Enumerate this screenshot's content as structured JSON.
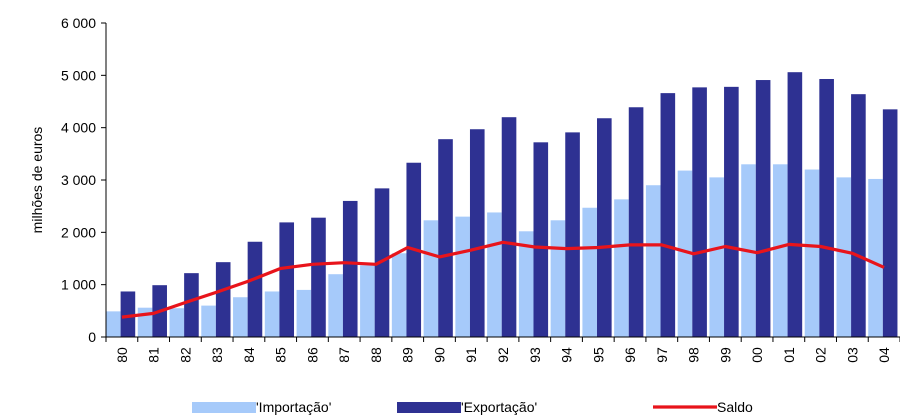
{
  "chart_data": {
    "type": "bar",
    "categories": [
      "80",
      "81",
      "82",
      "83",
      "84",
      "85",
      "86",
      "87",
      "88",
      "89",
      "90",
      "91",
      "92",
      "93",
      "94",
      "95",
      "96",
      "97",
      "98",
      "99",
      "00",
      "01",
      "02",
      "03",
      "04"
    ],
    "series": [
      {
        "name": "'Importação'",
        "type": "bar",
        "color": "#a6cafa",
        "values": [
          490,
          560,
          550,
          600,
          760,
          870,
          900,
          1200,
          1370,
          1600,
          2230,
          2300,
          2380,
          2020,
          2230,
          2470,
          2630,
          2900,
          3180,
          3050,
          3300,
          3300,
          3200,
          3050,
          3020
        ]
      },
      {
        "name": "'Exportação'",
        "type": "bar",
        "color": "#2e3192",
        "values": [
          870,
          990,
          1220,
          1430,
          1820,
          2190,
          2280,
          2600,
          2840,
          3330,
          3780,
          3970,
          4200,
          3720,
          3910,
          4180,
          4390,
          4660,
          4770,
          4780,
          4910,
          5060,
          4930,
          4640,
          4350
        ]
      },
      {
        "name": "Saldo",
        "type": "line",
        "color": "#e8141b",
        "values": [
          380,
          450,
          660,
          860,
          1070,
          1310,
          1390,
          1420,
          1390,
          1710,
          1530,
          1660,
          1810,
          1720,
          1690,
          1710,
          1760,
          1760,
          1590,
          1730,
          1610,
          1770,
          1730,
          1600,
          1330
        ]
      }
    ],
    "ylabel": "milhões de euros",
    "xlabel": "",
    "ylim": [
      0,
      6000
    ],
    "yticks": [
      0,
      1000,
      2000,
      3000,
      4000,
      5000,
      6000
    ],
    "ytick_labels": [
      "0",
      "1 000",
      "2 000",
      "3 000",
      "4 000",
      "5 000",
      "6 000"
    ],
    "grid": false,
    "legend_position": "bottom"
  }
}
